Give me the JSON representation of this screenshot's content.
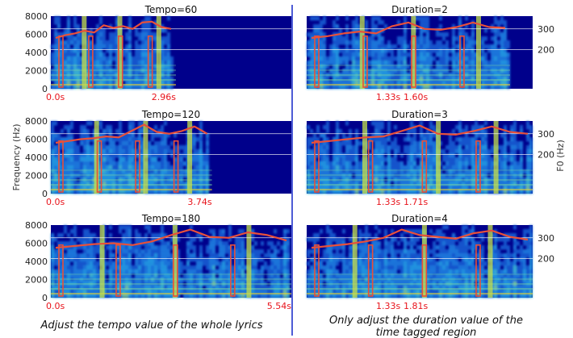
{
  "figure": {
    "caption_left": "Adjust the tempo value of the whole lyrics",
    "caption_right_line1": "Only adjust the duration value of the",
    "caption_right_line2": "time tagged region",
    "y_axis_left_label": "Frequency (Hz)",
    "y_axis_right_label": "F0 (Hz)",
    "divider_color": "#2233cc",
    "spectrogram_background": "#00008b",
    "f0_curve_color": "#e8503a",
    "marker_color": "#e8131b",
    "gridline_color": "#ffffff"
  },
  "chart_data": [
    {
      "type": "heatmap",
      "title": "Tempo=60",
      "yticks": [
        "0",
        "2000",
        "4000",
        "6000",
        "8000"
      ],
      "ylim": [
        0,
        8000
      ],
      "time_markers": [
        "0.0s",
        "2.96s"
      ],
      "content_end_fraction": 0.52,
      "f0_overlay": [
        5600,
        5900,
        6100,
        6400,
        6200,
        7000,
        6700,
        6900,
        6600,
        7300,
        7400,
        6800,
        6600
      ]
    },
    {
      "type": "heatmap",
      "title": "Tempo=120",
      "yticks": [
        "0",
        "2000",
        "4000",
        "6000",
        "8000"
      ],
      "ylim": [
        0,
        8000
      ],
      "time_markers": [
        "0.0s",
        "3.74s"
      ],
      "content_end_fraction": 0.67,
      "f0_overlay": [
        5600,
        5800,
        6000,
        6100,
        6300,
        6200,
        6900,
        7600,
        6800,
        6600,
        6900,
        7400,
        6600
      ]
    },
    {
      "type": "heatmap",
      "title": "Tempo=180",
      "yticks": [
        "0",
        "2000",
        "4000",
        "6000",
        "8000"
      ],
      "ylim": [
        0,
        8000
      ],
      "time_markers": [
        "0.0s",
        "5.54s"
      ],
      "content_end_fraction": 1.0,
      "f0_overlay": [
        5500,
        5700,
        5900,
        6000,
        5800,
        6200,
        6900,
        7500,
        6700,
        6600,
        7200,
        6900,
        6300
      ]
    },
    {
      "type": "heatmap",
      "title": "Duration=2",
      "right_yticks": [
        "300",
        "200"
      ],
      "time_markers": [
        "1.33s",
        "1.60s"
      ],
      "content_end_fraction": 0.9,
      "f0_overlay": [
        5600,
        5800,
        6100,
        6300,
        6100,
        6900,
        7300,
        6600,
        6500,
        6800,
        7300,
        6800,
        6700
      ]
    },
    {
      "type": "heatmap",
      "title": "Duration=3",
      "right_yticks": [
        "300",
        "200"
      ],
      "time_markers": [
        "1.33s",
        "1.71s"
      ],
      "content_end_fraction": 1.0,
      "f0_overlay": [
        5600,
        5800,
        6000,
        6200,
        6300,
        6900,
        7500,
        6600,
        6500,
        6900,
        7400,
        6800,
        6600
      ]
    },
    {
      "type": "heatmap",
      "title": "Duration=4",
      "right_yticks": [
        "300",
        "200"
      ],
      "time_markers": [
        "1.33s",
        "1.81s"
      ],
      "content_end_fraction": 1.0,
      "f0_overlay": [
        5500,
        5700,
        5900,
        6200,
        6600,
        7500,
        6900,
        6700,
        6500,
        7100,
        7400,
        6700,
        6400
      ]
    }
  ]
}
